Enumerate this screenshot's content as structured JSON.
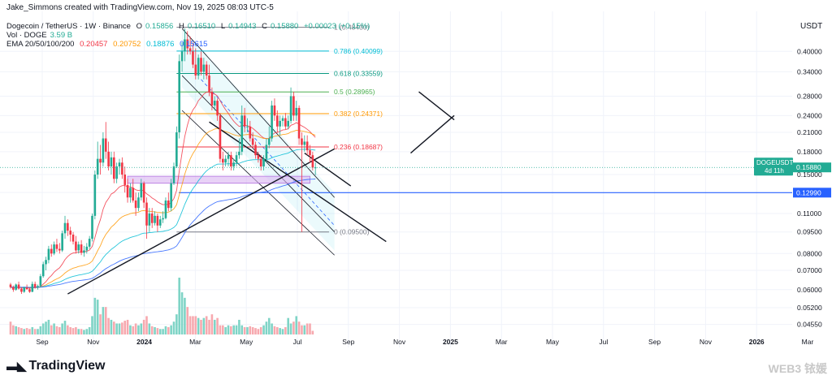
{
  "header": {
    "credit": "Jake_Simmons created with TradingView.com, Nov 19, 2025 08:03 UTC-5",
    "symbol": "Dogecoin / TetherUS · 1W · Binance",
    "o_label": "O",
    "o_value": "0.15856",
    "h_label": "H",
    "h_value": "0.16510",
    "l_label": "L",
    "l_value": "0.14943",
    "c_label": "C",
    "c_value": "0.15880",
    "change": "+0.00023 (+0.15%)",
    "vol_label": "Vol · DOGE",
    "vol_value": "3.59 B",
    "ema_label": "EMA 20/50/100/200",
    "ema20": "0.20457",
    "ema50": "0.20752",
    "ema100": "0.18876",
    "ema200": "0.15615"
  },
  "branding": {
    "logo": "TradingView",
    "watermark": "WEB3 铱媛"
  },
  "colors": {
    "up": "#22ab94",
    "down": "#f23645",
    "ema20": "#f23645",
    "ema50": "#ff9800",
    "ema100": "#00bcd4",
    "ema200": "#2962ff",
    "support": "#2962ff",
    "zone": "#d8b4f0"
  },
  "chart_data": {
    "type": "candlestick",
    "symbol": "DOGEUSDT",
    "price_scale": "log",
    "axis_unit": "USDT",
    "ylim": [
      0.042,
      0.55
    ],
    "y_ticks": [
      "0.40000",
      "0.34000",
      "0.28000",
      "0.24000",
      "0.21000",
      "0.18000",
      "0.15000",
      "0.13000",
      "0.11000",
      "0.09500",
      "0.08000",
      "0.07000",
      "0.06000",
      "0.05200",
      "0.04550"
    ],
    "x_ticks": [
      {
        "label": "Sep",
        "month": 0
      },
      {
        "label": "Nov",
        "month": 2
      },
      {
        "label": "2024",
        "month": 4
      },
      {
        "label": "Mar",
        "month": 6
      },
      {
        "label": "May",
        "month": 8
      },
      {
        "label": "Jul",
        "month": 10
      },
      {
        "label": "Sep",
        "month": 12
      },
      {
        "label": "Nov",
        "month": 14
      },
      {
        "label": "2025",
        "month": 16
      },
      {
        "label": "Mar",
        "month": 18
      },
      {
        "label": "May",
        "month": 20
      },
      {
        "label": "Jul",
        "month": 22
      },
      {
        "label": "Sep",
        "month": 24
      },
      {
        "label": "Nov",
        "month": 26
      },
      {
        "label": "2026",
        "month": 28
      },
      {
        "label": "Mar",
        "month": 30
      }
    ],
    "candles": [
      [
        0.0625,
        0.0633,
        0.0605,
        0.0612
      ],
      [
        0.0612,
        0.062,
        0.059,
        0.06
      ],
      [
        0.06,
        0.063,
        0.0595,
        0.0625
      ],
      [
        0.0625,
        0.064,
        0.06,
        0.0605
      ],
      [
        0.0605,
        0.0612,
        0.058,
        0.059
      ],
      [
        0.059,
        0.0615,
        0.0585,
        0.061
      ],
      [
        0.061,
        0.0625,
        0.06,
        0.0602
      ],
      [
        0.0602,
        0.061,
        0.0585,
        0.059
      ],
      [
        0.059,
        0.064,
        0.0588,
        0.0628
      ],
      [
        0.0628,
        0.064,
        0.0605,
        0.0612
      ],
      [
        0.0612,
        0.0625,
        0.06,
        0.0618
      ],
      [
        0.0618,
        0.068,
        0.0612,
        0.0668
      ],
      [
        0.0668,
        0.075,
        0.066,
        0.0735
      ],
      [
        0.0735,
        0.078,
        0.07,
        0.076
      ],
      [
        0.076,
        0.085,
        0.074,
        0.083
      ],
      [
        0.083,
        0.086,
        0.078,
        0.08
      ],
      [
        0.08,
        0.088,
        0.079,
        0.086
      ],
      [
        0.086,
        0.09,
        0.081,
        0.083
      ],
      [
        0.083,
        0.087,
        0.08,
        0.082
      ],
      [
        0.082,
        0.096,
        0.081,
        0.094
      ],
      [
        0.094,
        0.108,
        0.09,
        0.102
      ],
      [
        0.102,
        0.105,
        0.092,
        0.096
      ],
      [
        0.096,
        0.099,
        0.088,
        0.093
      ],
      [
        0.093,
        0.095,
        0.086,
        0.088
      ],
      [
        0.088,
        0.092,
        0.08,
        0.082
      ],
      [
        0.082,
        0.088,
        0.08,
        0.086
      ],
      [
        0.086,
        0.089,
        0.079,
        0.0805
      ],
      [
        0.0805,
        0.085,
        0.078,
        0.082
      ],
      [
        0.082,
        0.087,
        0.08,
        0.0845
      ],
      [
        0.0845,
        0.092,
        0.083,
        0.09
      ],
      [
        0.09,
        0.11,
        0.088,
        0.108
      ],
      [
        0.108,
        0.155,
        0.105,
        0.15
      ],
      [
        0.15,
        0.195,
        0.145,
        0.17
      ],
      [
        0.17,
        0.19,
        0.15,
        0.165
      ],
      [
        0.165,
        0.21,
        0.16,
        0.2
      ],
      [
        0.2,
        0.228,
        0.17,
        0.18
      ],
      [
        0.18,
        0.195,
        0.155,
        0.16
      ],
      [
        0.16,
        0.18,
        0.15,
        0.172
      ],
      [
        0.172,
        0.18,
        0.14,
        0.145
      ],
      [
        0.145,
        0.165,
        0.14,
        0.16
      ],
      [
        0.16,
        0.17,
        0.15,
        0.165
      ],
      [
        0.165,
        0.172,
        0.145,
        0.15
      ],
      [
        0.15,
        0.16,
        0.13,
        0.138
      ],
      [
        0.138,
        0.145,
        0.12,
        0.125
      ],
      [
        0.125,
        0.14,
        0.12,
        0.135
      ],
      [
        0.135,
        0.145,
        0.12,
        0.122
      ],
      [
        0.122,
        0.13,
        0.108,
        0.115
      ],
      [
        0.115,
        0.13,
        0.112,
        0.125
      ],
      [
        0.125,
        0.145,
        0.122,
        0.14
      ],
      [
        0.14,
        0.142,
        0.115,
        0.12
      ],
      [
        0.12,
        0.125,
        0.09,
        0.1
      ],
      [
        0.1,
        0.115,
        0.095,
        0.11
      ],
      [
        0.11,
        0.115,
        0.098,
        0.102
      ],
      [
        0.102,
        0.112,
        0.1,
        0.108
      ],
      [
        0.108,
        0.11,
        0.095,
        0.1
      ],
      [
        0.1,
        0.108,
        0.098,
        0.105
      ],
      [
        0.105,
        0.112,
        0.102,
        0.106
      ],
      [
        0.106,
        0.125,
        0.105,
        0.122
      ],
      [
        0.122,
        0.13,
        0.112,
        0.115
      ],
      [
        0.115,
        0.145,
        0.112,
        0.14
      ],
      [
        0.14,
        0.165,
        0.138,
        0.16
      ],
      [
        0.16,
        0.22,
        0.158,
        0.21
      ],
      [
        0.21,
        0.39,
        0.2,
        0.37
      ],
      [
        0.37,
        0.43,
        0.34,
        0.4
      ],
      [
        0.4,
        0.48,
        0.37,
        0.44
      ],
      [
        0.44,
        0.47,
        0.39,
        0.41
      ],
      [
        0.41,
        0.45,
        0.39,
        0.4
      ],
      [
        0.4,
        0.43,
        0.35,
        0.36
      ],
      [
        0.36,
        0.41,
        0.32,
        0.33
      ],
      [
        0.33,
        0.39,
        0.32,
        0.38
      ],
      [
        0.38,
        0.4,
        0.33,
        0.34
      ],
      [
        0.34,
        0.38,
        0.32,
        0.36
      ],
      [
        0.36,
        0.37,
        0.32,
        0.33
      ],
      [
        0.33,
        0.36,
        0.28,
        0.29
      ],
      [
        0.29,
        0.3,
        0.25,
        0.26
      ],
      [
        0.26,
        0.28,
        0.25,
        0.27
      ],
      [
        0.27,
        0.275,
        0.23,
        0.24
      ],
      [
        0.24,
        0.245,
        0.165,
        0.17
      ],
      [
        0.17,
        0.18,
        0.155,
        0.165
      ],
      [
        0.165,
        0.175,
        0.16,
        0.17
      ],
      [
        0.17,
        0.18,
        0.16,
        0.175
      ],
      [
        0.175,
        0.18,
        0.155,
        0.16
      ],
      [
        0.16,
        0.17,
        0.155,
        0.165
      ],
      [
        0.165,
        0.18,
        0.16,
        0.175
      ],
      [
        0.175,
        0.2,
        0.17,
        0.18
      ],
      [
        0.18,
        0.26,
        0.175,
        0.24
      ],
      [
        0.24,
        0.255,
        0.21,
        0.22
      ],
      [
        0.22,
        0.235,
        0.21,
        0.22
      ],
      [
        0.22,
        0.23,
        0.195,
        0.2
      ],
      [
        0.2,
        0.21,
        0.185,
        0.19
      ],
      [
        0.19,
        0.195,
        0.17,
        0.175
      ],
      [
        0.175,
        0.18,
        0.165,
        0.17
      ],
      [
        0.17,
        0.175,
        0.155,
        0.16
      ],
      [
        0.16,
        0.175,
        0.155,
        0.17
      ],
      [
        0.17,
        0.2,
        0.165,
        0.19
      ],
      [
        0.19,
        0.22,
        0.185,
        0.2
      ],
      [
        0.2,
        0.27,
        0.195,
        0.26
      ],
      [
        0.26,
        0.275,
        0.23,
        0.24
      ],
      [
        0.24,
        0.25,
        0.21,
        0.22
      ],
      [
        0.22,
        0.24,
        0.205,
        0.23
      ],
      [
        0.23,
        0.24,
        0.22,
        0.235
      ],
      [
        0.235,
        0.245,
        0.215,
        0.22
      ],
      [
        0.22,
        0.24,
        0.215,
        0.23
      ],
      [
        0.23,
        0.3,
        0.225,
        0.28
      ],
      [
        0.28,
        0.29,
        0.23,
        0.24
      ],
      [
        0.24,
        0.27,
        0.23,
        0.255
      ],
      [
        0.255,
        0.26,
        0.19,
        0.2
      ],
      [
        0.2,
        0.21,
        0.095,
        0.19
      ],
      [
        0.19,
        0.205,
        0.18,
        0.195
      ],
      [
        0.195,
        0.205,
        0.175,
        0.182
      ],
      [
        0.182,
        0.19,
        0.165,
        0.175
      ],
      [
        0.175,
        0.18,
        0.155,
        0.1585
      ],
      [
        0.1586,
        0.1651,
        0.1494,
        0.1588
      ]
    ],
    "volume": [
      0.14,
      0.1,
      0.09,
      0.08,
      0.07,
      0.06,
      0.07,
      0.06,
      0.08,
      0.06,
      0.06,
      0.09,
      0.12,
      0.14,
      0.16,
      0.1,
      0.12,
      0.09,
      0.08,
      0.12,
      0.15,
      0.1,
      0.08,
      0.07,
      0.08,
      0.06,
      0.06,
      0.05,
      0.06,
      0.08,
      0.2,
      0.4,
      0.38,
      0.22,
      0.3,
      0.3,
      0.18,
      0.16,
      0.14,
      0.12,
      0.12,
      0.13,
      0.15,
      0.16,
      0.1,
      0.09,
      0.12,
      0.1,
      0.12,
      0.16,
      0.2,
      0.12,
      0.09,
      0.08,
      0.07,
      0.06,
      0.06,
      0.09,
      0.08,
      0.1,
      0.14,
      0.22,
      0.62,
      0.46,
      0.4,
      0.3,
      0.2,
      0.2,
      0.2,
      0.18,
      0.16,
      0.18,
      0.2,
      0.16,
      0.22,
      0.16,
      0.18,
      0.1,
      0.1,
      0.08,
      0.1,
      0.09,
      0.1,
      0.1,
      0.16,
      0.1,
      0.08,
      0.08,
      0.09,
      0.08,
      0.07,
      0.06,
      0.08,
      0.1,
      0.14,
      0.18,
      0.12,
      0.09,
      0.08,
      0.07,
      0.06,
      0.08,
      0.18,
      0.12,
      0.14,
      0.2,
      0.14,
      0.1,
      0.1,
      0.12,
      0.12,
      0.04
    ],
    "fib_levels": [
      {
        "label": "1 (0.48430)",
        "value": 0.4843,
        "color": "#787b86"
      },
      {
        "label": "0.786 (0.40099)",
        "value": 0.40099,
        "color": "#00bcd4"
      },
      {
        "label": "0.618 (0.33559)",
        "value": 0.33559,
        "color": "#089981"
      },
      {
        "label": "0.5 (0.28965)",
        "value": 0.28965,
        "color": "#4caf50"
      },
      {
        "label": "0.382 (0.24371)",
        "value": 0.24371,
        "color": "#ff9800"
      },
      {
        "label": "0.236 (0.18687)",
        "value": 0.18687,
        "color": "#f23645"
      },
      {
        "label": "0 (0.09500)",
        "value": 0.095,
        "color": "#787b86"
      }
    ],
    "support_line": {
      "value": 0.1299,
      "label": "0.12990"
    },
    "last_price": {
      "value": 0.1588,
      "symbol": "DOGEUSDT",
      "price": "0.15880",
      "countdown": "4d 11h"
    }
  }
}
